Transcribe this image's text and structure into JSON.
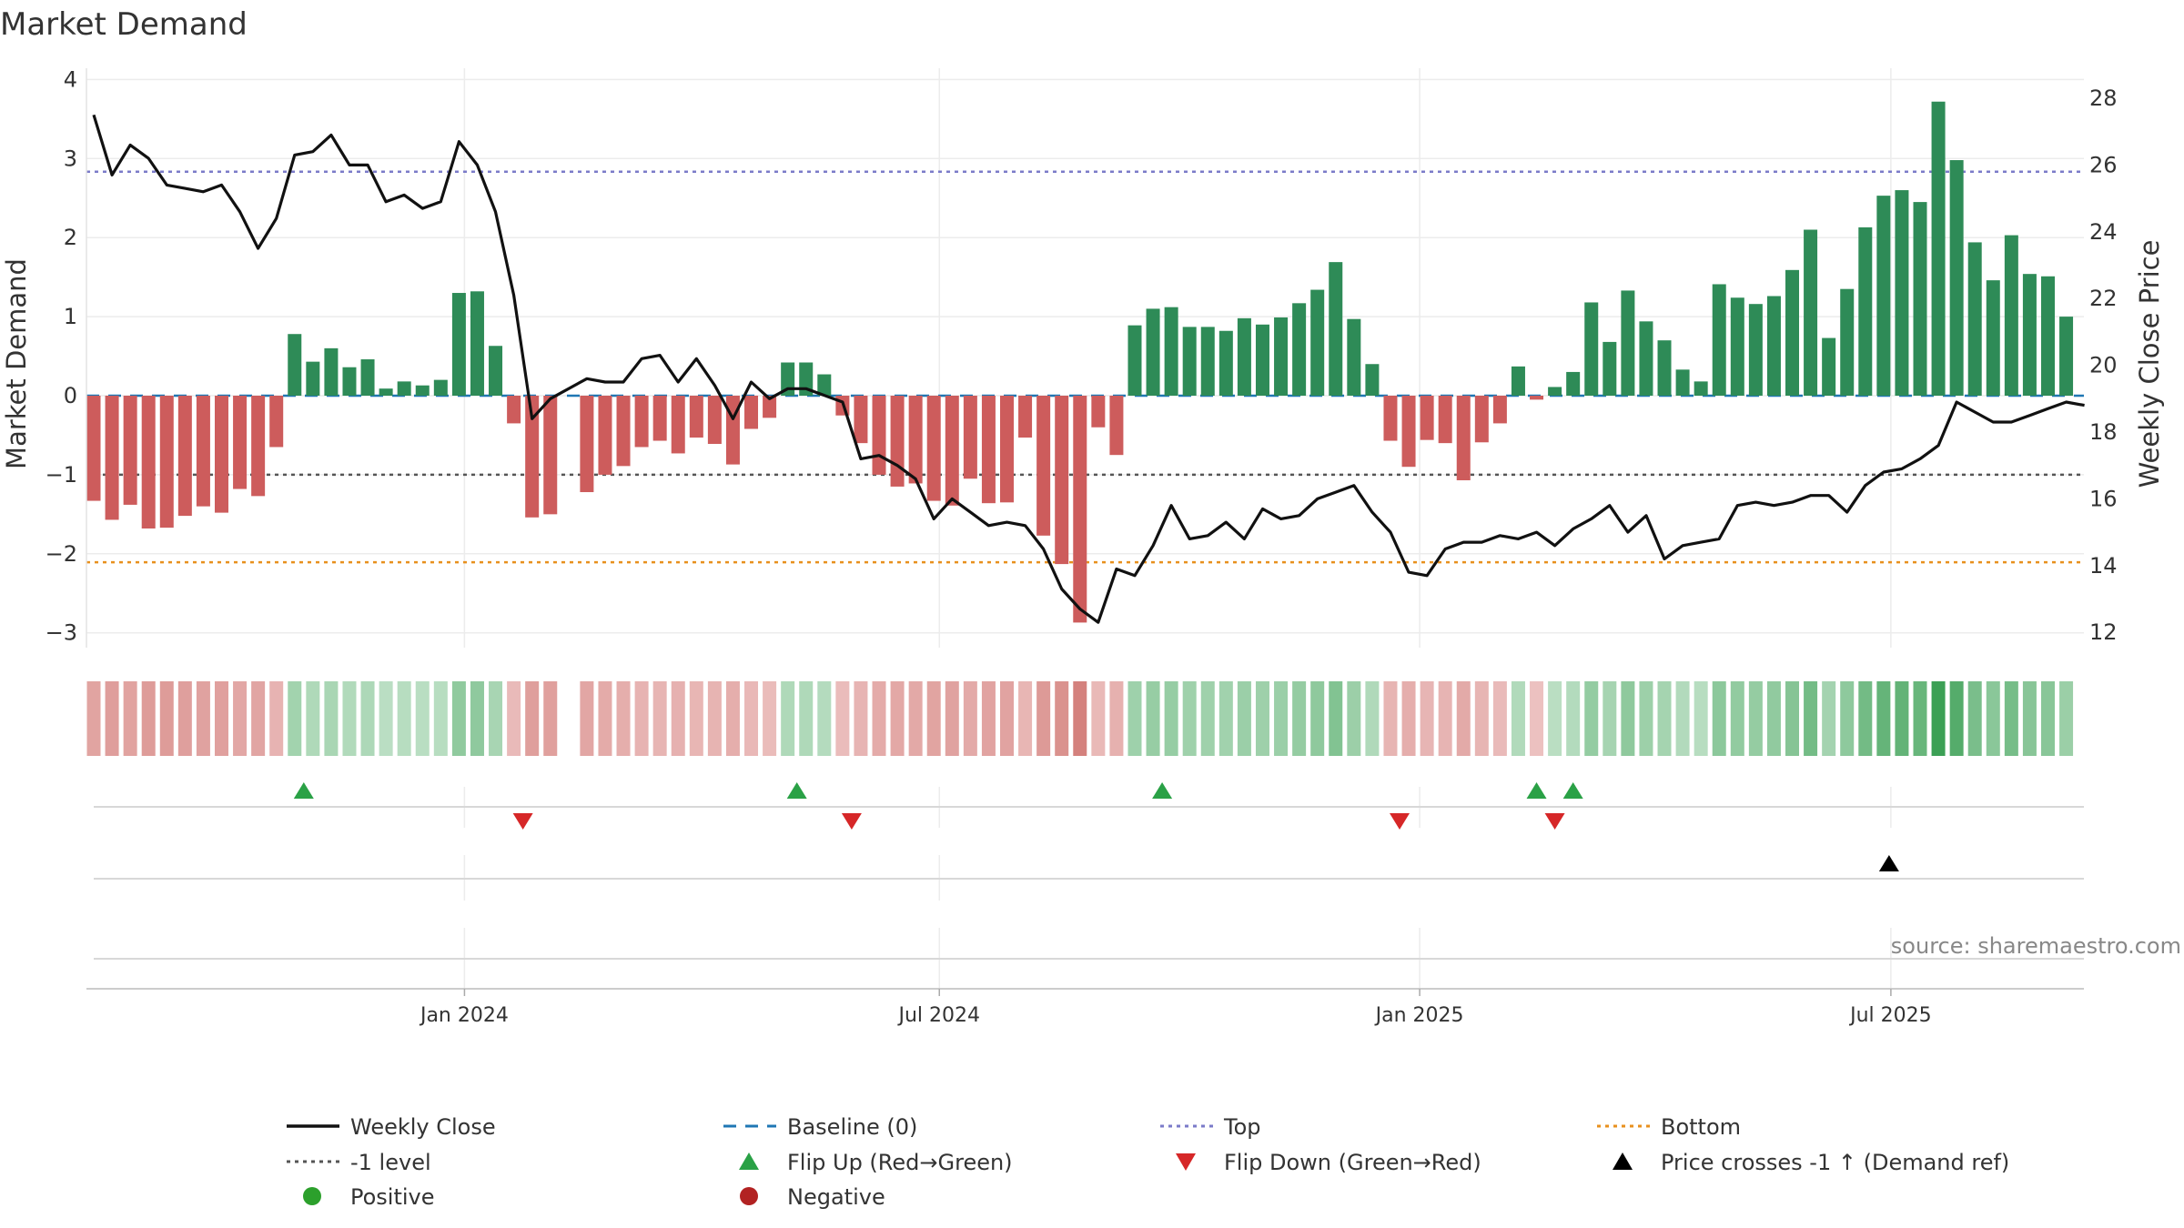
{
  "chart_data": {
    "type": "bar",
    "title": "Market Demand",
    "ylabel_left": "Market Demand",
    "ylabel_right": "Weekly Close Price",
    "ylim_left": [
      -3.3,
      4.1
    ],
    "ylim_right": [
      11.5,
      28.5
    ],
    "yticks_left": [
      "4",
      "3",
      "2",
      "1",
      "0",
      "−1",
      "−2",
      "−3"
    ],
    "ytick_values_left": [
      4,
      3,
      2,
      1,
      0,
      -1,
      -2,
      -3
    ],
    "yticks_right": [
      "28",
      "26",
      "24",
      "22",
      "20",
      "18",
      "16",
      "14",
      "12"
    ],
    "ytick_values_right": [
      28,
      26,
      24,
      22,
      20,
      18,
      16,
      14,
      12
    ],
    "xticks": [
      {
        "label": "Jan 2024",
        "week": 20.3
      },
      {
        "label": "Jul 2024",
        "week": 46.3
      },
      {
        "label": "Jan 2025",
        "week": 72.6
      },
      {
        "label": "Jul 2025",
        "week": 98.4
      }
    ],
    "missing_weeks": [
      26
    ],
    "demand": [
      -1.33,
      -1.57,
      -1.38,
      -1.68,
      -1.67,
      -1.52,
      -1.4,
      -1.48,
      -1.18,
      -1.27,
      -0.65,
      0.78,
      0.43,
      0.6,
      0.36,
      0.46,
      0.09,
      0.18,
      0.13,
      0.2,
      1.3,
      1.32,
      0.63,
      -0.35,
      -1.54,
      -1.5,
      null,
      -1.22,
      -1.0,
      -0.89,
      -0.65,
      -0.57,
      -0.73,
      -0.53,
      -0.61,
      -0.87,
      -0.42,
      -0.28,
      0.42,
      0.42,
      0.27,
      -0.25,
      -0.6,
      -1.0,
      -1.15,
      -1.11,
      -1.33,
      -1.39,
      -1.05,
      -1.36,
      -1.35,
      -0.53,
      -1.77,
      -2.13,
      -2.87,
      -0.4,
      -0.75,
      0.89,
      1.1,
      1.12,
      0.87,
      0.87,
      0.82,
      0.98,
      0.9,
      0.99,
      1.17,
      1.34,
      1.69,
      0.97,
      0.4,
      -0.57,
      -0.9,
      -0.56,
      -0.6,
      -1.07,
      -0.59,
      -0.35,
      0.37,
      -0.05,
      0.11,
      0.3,
      1.18,
      0.68,
      1.33,
      0.94,
      0.7,
      0.33,
      0.18,
      1.41,
      1.24,
      1.16,
      1.26,
      1.59,
      2.1,
      0.73,
      1.35,
      2.13,
      2.53,
      2.6,
      2.45,
      3.72,
      2.98,
      1.94,
      1.46,
      2.03,
      1.54,
      1.51,
      1.0
    ],
    "price_weeks": [
      0,
      1,
      2,
      3,
      4,
      5,
      6,
      7,
      8,
      9,
      10,
      11,
      12,
      13,
      14,
      15,
      16,
      17,
      18,
      19,
      20,
      21,
      22,
      23,
      24,
      25,
      27,
      28,
      29,
      30,
      31,
      32,
      33,
      34,
      35,
      36,
      37,
      38,
      39,
      40,
      41,
      42,
      43,
      44,
      45,
      46,
      47,
      48,
      49,
      50,
      51,
      52,
      53,
      54,
      55,
      56,
      57,
      58,
      59,
      60,
      61,
      62,
      63,
      64,
      65,
      66,
      67,
      68,
      69,
      70,
      71,
      72,
      73,
      74,
      75,
      76,
      77,
      78,
      79,
      80,
      81,
      82,
      83,
      84,
      85,
      86,
      87,
      88,
      89,
      90,
      91,
      92,
      93,
      94,
      95,
      96,
      97,
      98,
      99,
      100,
      101,
      102,
      103,
      104,
      105,
      106,
      107,
      108,
      109
    ],
    "price": [
      27.5,
      25.7,
      26.6,
      26.2,
      25.4,
      25.3,
      25.2,
      25.4,
      24.6,
      23.5,
      24.4,
      26.3,
      26.4,
      26.9,
      26.0,
      26.0,
      24.9,
      25.1,
      24.7,
      24.9,
      26.7,
      26.0,
      24.6,
      22.1,
      18.4,
      19.0,
      19.6,
      19.5,
      19.5,
      20.2,
      20.3,
      19.5,
      20.2,
      19.4,
      18.4,
      19.5,
      19.0,
      19.3,
      19.3,
      19.1,
      18.9,
      17.2,
      17.3,
      17.0,
      16.6,
      15.4,
      16.0,
      15.6,
      15.2,
      15.3,
      15.2,
      14.5,
      13.3,
      12.7,
      12.3,
      13.9,
      13.7,
      14.6,
      15.8,
      14.8,
      14.9,
      15.3,
      14.8,
      15.7,
      15.4,
      15.5,
      16.0,
      16.2,
      16.4,
      15.6,
      15.0,
      13.8,
      13.7,
      14.5,
      14.7,
      14.7,
      14.9,
      14.8,
      15.0,
      14.6,
      15.1,
      15.4,
      15.8,
      15.0,
      15.5,
      14.2,
      14.6,
      14.7,
      14.8,
      15.8,
      15.9,
      15.8,
      15.9,
      16.1,
      16.1,
      15.6,
      16.4,
      16.8,
      16.9,
      17.2,
      17.6,
      18.9,
      18.6,
      18.3,
      18.3,
      18.5,
      18.7,
      18.9,
      18.8
    ],
    "reference_lines": {
      "baseline": {
        "value": 0,
        "axis": "left",
        "color": "#1f77b4",
        "label": "Baseline (0)"
      },
      "top": {
        "value": 25.8,
        "axis": "right",
        "color": "#7b7bc9",
        "label": "Top"
      },
      "minus_one": {
        "value": -1,
        "axis": "left",
        "color": "#555555",
        "label": "-1 level"
      },
      "bottom": {
        "value": 14.1,
        "axis": "right",
        "color": "#e8901e",
        "label": "Bottom"
      }
    },
    "flip_up_weeks": [
      11.5,
      38.5,
      58.5,
      79,
      81
    ],
    "flip_down_weeks": [
      23.5,
      41.5,
      71.5,
      80
    ],
    "price_cross_weeks": [
      98.3
    ],
    "heat_strip": "Demand intensity per week (green = positive, red = negative)",
    "colors": {
      "positive": "#2e8b57",
      "negative": "#cd5c5c",
      "price": "#111111",
      "flip_up": "#2aa146",
      "flip_down": "#d62728",
      "cross": "#000000",
      "positive_dot": "#2ca02c",
      "negative_dot": "#b22222"
    },
    "source": "source: sharemaestro.com",
    "legend": [
      {
        "label": "Weekly Close",
        "marker": "line-solid",
        "color": "#111111"
      },
      {
        "label": "Baseline (0)",
        "marker": "line-dash",
        "color": "#1f77b4"
      },
      {
        "label": "Top",
        "marker": "line-dot",
        "color": "#7b7bc9"
      },
      {
        "label": "Bottom",
        "marker": "line-dot",
        "color": "#e8901e"
      },
      {
        "label": "-1 level",
        "marker": "line-dot",
        "color": "#555555"
      },
      {
        "label": "Flip Up (Red→Green)",
        "marker": "triangle-up",
        "color": "#2aa146"
      },
      {
        "label": "Flip Down (Green→Red)",
        "marker": "triangle-down",
        "color": "#d62728"
      },
      {
        "label": "Price crosses -1 ↑ (Demand ref)",
        "marker": "triangle-up",
        "color": "#000000"
      },
      {
        "label": "Positive",
        "marker": "dot",
        "color": "#2ca02c"
      },
      {
        "label": "Negative",
        "marker": "dot",
        "color": "#b22222"
      }
    ]
  }
}
